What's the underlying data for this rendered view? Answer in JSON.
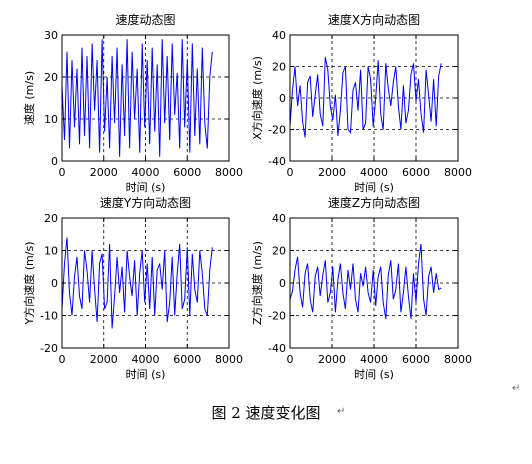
{
  "figure": {
    "caption": "图 2  速度变化图",
    "colors": {
      "line": "#0000ff",
      "axes": "#000000",
      "grid": "#000000"
    }
  },
  "chart_data": [
    {
      "type": "line",
      "title": "速度动态图",
      "xlabel": "时间 (s)",
      "ylabel": "速度 (m/s)",
      "xlim": [
        0,
        8000
      ],
      "ylim": [
        0,
        30
      ],
      "xticks": [
        "0",
        "2000",
        "4000",
        "6000",
        "8000"
      ],
      "yticks": [
        "0",
        "10",
        "20",
        "30"
      ],
      "grid": true,
      "series": [
        {
          "x": [
            0,
            120,
            240,
            360,
            480,
            600,
            720,
            840,
            960,
            1080,
            1200,
            1320,
            1440,
            1560,
            1680,
            1800,
            1920,
            2040,
            2160,
            2280,
            2400,
            2520,
            2640,
            2760,
            2880,
            3000,
            3120,
            3240,
            3360,
            3480,
            3600,
            3720,
            3840,
            3960,
            4080,
            4200,
            4320,
            4440,
            4560,
            4680,
            4800,
            4920,
            5040,
            5160,
            5280,
            5400,
            5520,
            5640,
            5760,
            5880,
            6000,
            6120,
            6240,
            6360,
            6480,
            6600,
            6720,
            6840,
            6960,
            7080,
            7200
          ],
          "y": [
            18,
            5,
            26,
            3,
            24,
            8,
            22,
            4,
            27,
            6,
            25,
            3,
            28,
            12,
            24,
            2,
            29,
            7,
            20,
            3,
            25,
            9,
            27,
            1,
            23,
            6,
            29,
            3,
            26,
            10,
            22,
            2,
            28,
            8,
            24,
            4,
            27,
            7,
            23,
            1,
            29,
            9,
            25,
            5,
            28,
            11,
            21,
            3,
            29,
            8,
            24,
            2,
            28,
            6,
            22,
            4,
            27,
            9,
            3,
            20,
            26
          ]
        }
      ]
    },
    {
      "type": "line",
      "title": "速度X方向动态图",
      "xlabel": "时间 (s)",
      "ylabel": "X方向速度 (m/s)",
      "xlim": [
        0,
        8000
      ],
      "ylim": [
        -40,
        40
      ],
      "xticks": [
        "0",
        "2000",
        "4000",
        "6000",
        "8000"
      ],
      "yticks": [
        "-40",
        "-20",
        "0",
        "20",
        "40"
      ],
      "grid": true,
      "series": [
        {
          "x": [
            0,
            120,
            240,
            360,
            480,
            600,
            720,
            840,
            960,
            1080,
            1200,
            1320,
            1440,
            1560,
            1680,
            1800,
            1920,
            2040,
            2160,
            2280,
            2400,
            2520,
            2640,
            2760,
            2880,
            3000,
            3120,
            3240,
            3360,
            3480,
            3600,
            3720,
            3840,
            3960,
            4080,
            4200,
            4320,
            4440,
            4560,
            4680,
            4800,
            4920,
            5040,
            5160,
            5280,
            5400,
            5520,
            5640,
            5760,
            5880,
            6000,
            6120,
            6240,
            6360,
            6480,
            6600,
            6720,
            6840,
            6960,
            7080,
            7200
          ],
          "y": [
            -18,
            5,
            20,
            -5,
            8,
            -15,
            -25,
            10,
            14,
            -12,
            2,
            15,
            -10,
            -18,
            26,
            18,
            -5,
            -14,
            2,
            -24,
            -8,
            16,
            20,
            -20,
            -22,
            5,
            10,
            -8,
            18,
            -20,
            -16,
            20,
            12,
            -18,
            0,
            24,
            -10,
            -20,
            22,
            6,
            -5,
            10,
            20,
            -5,
            -20,
            8,
            -16,
            -8,
            15,
            22,
            -2,
            12,
            -10,
            -22,
            18,
            2,
            -15,
            12,
            -18,
            14,
            22
          ]
        }
      ]
    },
    {
      "type": "line",
      "title": "速度Y方向动态图",
      "xlabel": "时间 (s)",
      "ylabel": "Y方向速度 (m/s)",
      "xlim": [
        0,
        8000
      ],
      "ylim": [
        -20,
        20
      ],
      "xticks": [
        "0",
        "2000",
        "4000",
        "6000",
        "8000"
      ],
      "yticks": [
        "-20",
        "-10",
        "0",
        "10",
        "20"
      ],
      "grid": true,
      "series": [
        {
          "x": [
            0,
            120,
            240,
            360,
            480,
            600,
            720,
            840,
            960,
            1080,
            1200,
            1320,
            1440,
            1560,
            1680,
            1800,
            1920,
            2040,
            2160,
            2280,
            2400,
            2520,
            2640,
            2760,
            2880,
            3000,
            3120,
            3240,
            3360,
            3480,
            3600,
            3720,
            3840,
            3960,
            4080,
            4200,
            4320,
            4440,
            4560,
            4680,
            4800,
            4920,
            5040,
            5160,
            5280,
            5400,
            5520,
            5640,
            5760,
            5880,
            6000,
            6120,
            6240,
            6360,
            6480,
            6600,
            6720,
            6840,
            6960,
            7080,
            7200
          ],
          "y": [
            -8,
            6,
            14,
            -3,
            -10,
            2,
            8,
            -4,
            -8,
            10,
            4,
            -6,
            10,
            -2,
            -12,
            6,
            9,
            -8,
            -6,
            12,
            -14,
            -4,
            8,
            -3,
            5,
            -9,
            10,
            2,
            -4,
            7,
            -10,
            3,
            10,
            -6,
            6,
            -8,
            8,
            -10,
            4,
            6,
            -2,
            10,
            -12,
            -6,
            8,
            -10,
            3,
            12,
            -8,
            -5,
            11,
            -10,
            9,
            -2,
            -6,
            10,
            3,
            -8,
            -10,
            4,
            11
          ]
        }
      ]
    },
    {
      "type": "line",
      "title": "速度Z方向动态图",
      "xlabel": "时间 (s)",
      "ylabel": "Z方向速度 (m/s)",
      "xlim": [
        0,
        8000
      ],
      "ylim": [
        -40,
        40
      ],
      "xticks": [
        "0",
        "2000",
        "4000",
        "6000",
        "8000"
      ],
      "yticks": [
        "-40",
        "-20",
        "0",
        "20",
        "40"
      ],
      "grid": true,
      "series": [
        {
          "x": [
            0,
            120,
            240,
            360,
            480,
            600,
            720,
            840,
            960,
            1080,
            1200,
            1320,
            1440,
            1560,
            1680,
            1800,
            1920,
            2040,
            2160,
            2280,
            2400,
            2520,
            2640,
            2760,
            2880,
            3000,
            3120,
            3240,
            3360,
            3480,
            3600,
            3720,
            3840,
            3960,
            4080,
            4200,
            4320,
            4440,
            4560,
            4680,
            4800,
            4920,
            5040,
            5160,
            5280,
            5400,
            5520,
            5640,
            5760,
            5880,
            6000,
            6120,
            6240,
            6360,
            6480,
            6600,
            6720,
            6840,
            6960,
            7080,
            7200
          ],
          "y": [
            -10,
            -5,
            8,
            16,
            -6,
            -15,
            6,
            12,
            -10,
            -18,
            4,
            10,
            -8,
            5,
            14,
            -12,
            -6,
            10,
            -18,
            2,
            12,
            -6,
            -16,
            8,
            -4,
            12,
            -10,
            -18,
            6,
            -2,
            10,
            -6,
            -12,
            8,
            -14,
            4,
            10,
            -12,
            -22,
            5,
            14,
            -10,
            -4,
            12,
            -18,
            -6,
            10,
            -8,
            -22,
            6,
            -12,
            12,
            24,
            -10,
            -20,
            4,
            10,
            -6,
            6,
            -4,
            -3
          ]
        }
      ]
    }
  ]
}
